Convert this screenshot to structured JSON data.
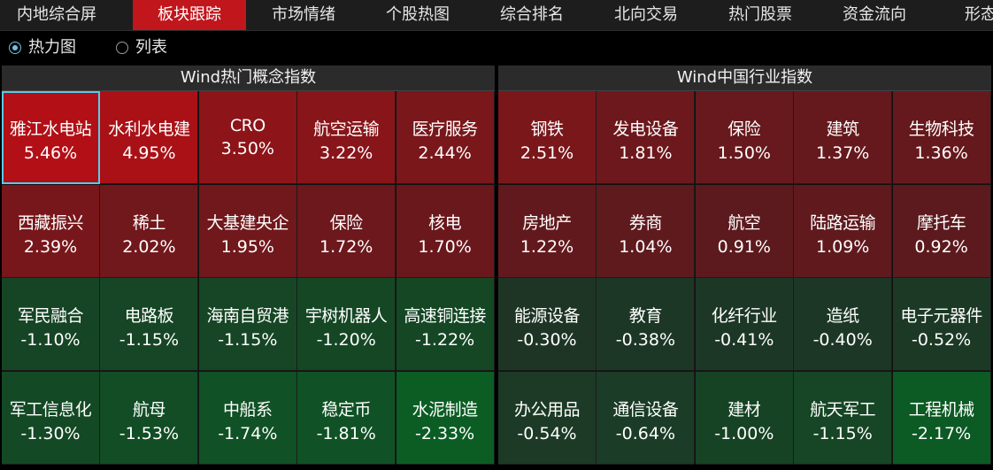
{
  "tabs": [
    {
      "label": "内地综合屏",
      "active": false
    },
    {
      "label": "板块跟踪",
      "active": true
    },
    {
      "label": "市场情绪",
      "active": false
    },
    {
      "label": "个股热图",
      "active": false
    },
    {
      "label": "综合排名",
      "active": false
    },
    {
      "label": "北向交易",
      "active": false
    },
    {
      "label": "热门股票",
      "active": false
    },
    {
      "label": "资金流向",
      "active": false
    },
    {
      "label": "形态选",
      "active": false
    }
  ],
  "view_mode": {
    "heatmap_label": "热力图",
    "list_label": "列表",
    "selected": "heatmap"
  },
  "colors": {
    "active_tab": "#c0161c",
    "selection_outline": "#5cc8e8"
  },
  "left_panel": {
    "title": "Wind热门概念指数",
    "cells": [
      {
        "name": "雅江水电站",
        "pct": "5.46%",
        "change": 5.46,
        "selected": true
      },
      {
        "name": "水利水电建",
        "pct": "4.95%",
        "change": 4.95
      },
      {
        "name": "CRO",
        "pct": "3.50%",
        "change": 3.5
      },
      {
        "name": "航空运输",
        "pct": "3.22%",
        "change": 3.22
      },
      {
        "name": "医疗服务",
        "pct": "2.44%",
        "change": 2.44
      },
      {
        "name": "西藏振兴",
        "pct": "2.39%",
        "change": 2.39
      },
      {
        "name": "稀土",
        "pct": "2.02%",
        "change": 2.02
      },
      {
        "name": "大基建央企",
        "pct": "1.95%",
        "change": 1.95
      },
      {
        "name": "保险",
        "pct": "1.72%",
        "change": 1.72
      },
      {
        "name": "核电",
        "pct": "1.70%",
        "change": 1.7
      },
      {
        "name": "军民融合",
        "pct": "-1.10%",
        "change": -1.1
      },
      {
        "name": "电路板",
        "pct": "-1.15%",
        "change": -1.15
      },
      {
        "name": "海南自贸港",
        "pct": "-1.15%",
        "change": -1.15
      },
      {
        "name": "宇树机器人",
        "pct": "-1.20%",
        "change": -1.2
      },
      {
        "name": "高速铜连接",
        "pct": "-1.22%",
        "change": -1.22
      },
      {
        "name": "军工信息化",
        "pct": "-1.30%",
        "change": -1.3
      },
      {
        "name": "航母",
        "pct": "-1.53%",
        "change": -1.53
      },
      {
        "name": "中船系",
        "pct": "-1.74%",
        "change": -1.74
      },
      {
        "name": "稳定币",
        "pct": "-1.81%",
        "change": -1.81
      },
      {
        "name": "水泥制造",
        "pct": "-2.33%",
        "change": -2.33
      }
    ]
  },
  "right_panel": {
    "title": "Wind中国行业指数",
    "cells": [
      {
        "name": "钢铁",
        "pct": "2.51%",
        "change": 2.51
      },
      {
        "name": "发电设备",
        "pct": "1.81%",
        "change": 1.81
      },
      {
        "name": "保险",
        "pct": "1.50%",
        "change": 1.5
      },
      {
        "name": "建筑",
        "pct": "1.37%",
        "change": 1.37
      },
      {
        "name": "生物科技",
        "pct": "1.36%",
        "change": 1.36
      },
      {
        "name": "房地产",
        "pct": "1.22%",
        "change": 1.22
      },
      {
        "name": "券商",
        "pct": "1.04%",
        "change": 1.04
      },
      {
        "name": "航空",
        "pct": "0.91%",
        "change": 0.91
      },
      {
        "name": "陆路运输",
        "pct": "1.09%",
        "change": 1.09
      },
      {
        "name": "摩托车",
        "pct": "0.92%",
        "change": 0.92
      },
      {
        "name": "能源设备",
        "pct": "-0.30%",
        "change": -0.3
      },
      {
        "name": "教育",
        "pct": "-0.38%",
        "change": -0.38
      },
      {
        "name": "化纤行业",
        "pct": "-0.41%",
        "change": -0.41
      },
      {
        "name": "造纸",
        "pct": "-0.40%",
        "change": -0.4
      },
      {
        "name": "电子元器件",
        "pct": "-0.52%",
        "change": -0.52
      },
      {
        "name": "办公用品",
        "pct": "-0.54%",
        "change": -0.54
      },
      {
        "name": "通信设备",
        "pct": "-0.64%",
        "change": -0.64
      },
      {
        "name": "建材",
        "pct": "-1.00%",
        "change": -1.0
      },
      {
        "name": "航天军工",
        "pct": "-1.15%",
        "change": -1.15
      },
      {
        "name": "工程机械",
        "pct": "-2.17%",
        "change": -2.17
      }
    ]
  }
}
